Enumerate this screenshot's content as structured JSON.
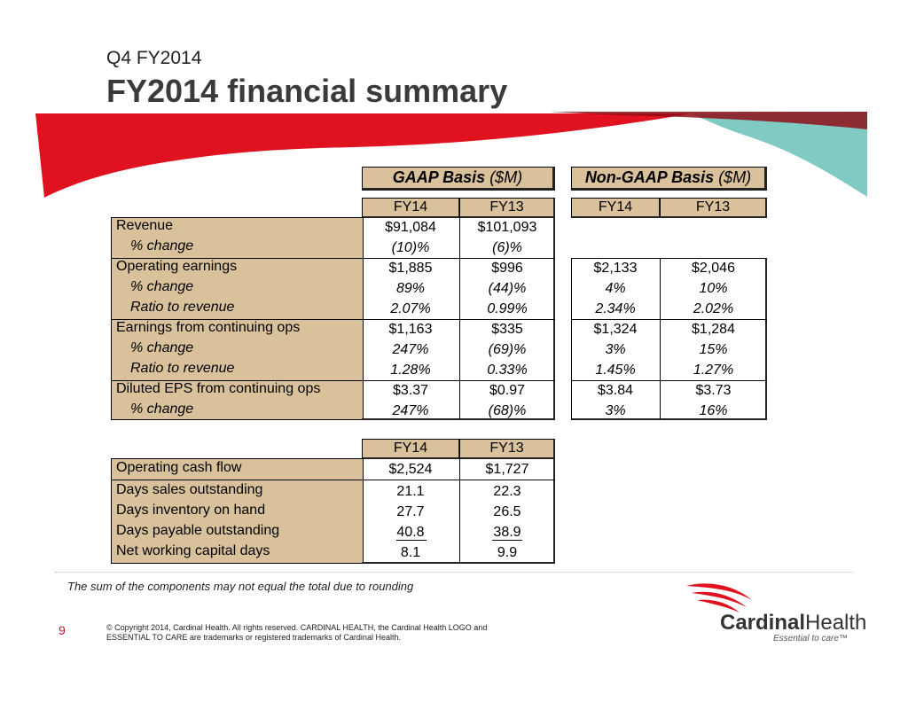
{
  "header": {
    "subtitle": "Q4 FY2014",
    "title": "FY2014 financial summary"
  },
  "colors": {
    "accent_red": "#e0121f",
    "accent_teal": "#7fcac2",
    "tan": "#d8c19b"
  },
  "gaap": {
    "label": "GAAP Basis",
    "unit": "($M)"
  },
  "nongaap": {
    "label": "Non-GAAP Basis",
    "unit": "($M)"
  },
  "columns": {
    "fy14": "FY14",
    "fy13": "FY13"
  },
  "table1": {
    "rows": [
      {
        "label": "Revenue",
        "g14": "$91,084",
        "g13": "$101,093",
        "n14": "",
        "n13": ""
      },
      {
        "label": "% change",
        "g14": "(10)%",
        "g13": "(6)%",
        "n14": "",
        "n13": ""
      },
      {
        "label": "Operating earnings",
        "g14": "$1,885",
        "g13": "$996",
        "n14": "$2,133",
        "n13": "$2,046"
      },
      {
        "label": "% change",
        "g14": "89%",
        "g13": "(44)%",
        "n14": "4%",
        "n13": "10%"
      },
      {
        "label": "Ratio to revenue",
        "g14": "2.07%",
        "g13": "0.99%",
        "n14": "2.34%",
        "n13": "2.02%"
      },
      {
        "label": "Earnings from continuing ops",
        "g14": "$1,163",
        "g13": "$335",
        "n14": "$1,324",
        "n13": "$1,284"
      },
      {
        "label": "% change",
        "g14": "247%",
        "g13": "(69)%",
        "n14": "3%",
        "n13": "15%"
      },
      {
        "label": "Ratio to revenue",
        "g14": "1.28%",
        "g13": "0.33%",
        "n14": "1.45%",
        "n13": "1.27%"
      },
      {
        "label": "Diluted EPS from continuing ops",
        "g14": "$3.37",
        "g13": "$0.97",
        "n14": "$3.84",
        "n13": "$3.73"
      },
      {
        "label": "% change",
        "g14": "247%",
        "g13": "(68)%",
        "n14": "3%",
        "n13": "16%"
      }
    ]
  },
  "table2": {
    "rows": [
      {
        "label": "Operating cash flow",
        "fy14": "$2,524",
        "fy13": "$1,727"
      },
      {
        "label": "Days sales outstanding",
        "fy14": "21.1",
        "fy13": "22.3"
      },
      {
        "label": "Days inventory on hand",
        "fy14": "27.7",
        "fy13": "26.5"
      },
      {
        "label": "Days payable outstanding",
        "fy14": "40.8",
        "fy13": "38.9"
      },
      {
        "label": "Net working capital days",
        "fy14": "8.1",
        "fy13": "9.9"
      }
    ]
  },
  "footnote": "The sum of the components may not equal the total due to rounding",
  "footer": {
    "page_number": "9",
    "copyright": "© Copyright 2014, Cardinal Health. All rights reserved. CARDINAL HEALTH, the Cardinal Health LOGO and ESSENTIAL TO CARE are trademarks or registered trademarks of Cardinal Health.",
    "logo_word1": "Cardinal",
    "logo_word2": "Health",
    "tagline": "Essential to care™"
  }
}
